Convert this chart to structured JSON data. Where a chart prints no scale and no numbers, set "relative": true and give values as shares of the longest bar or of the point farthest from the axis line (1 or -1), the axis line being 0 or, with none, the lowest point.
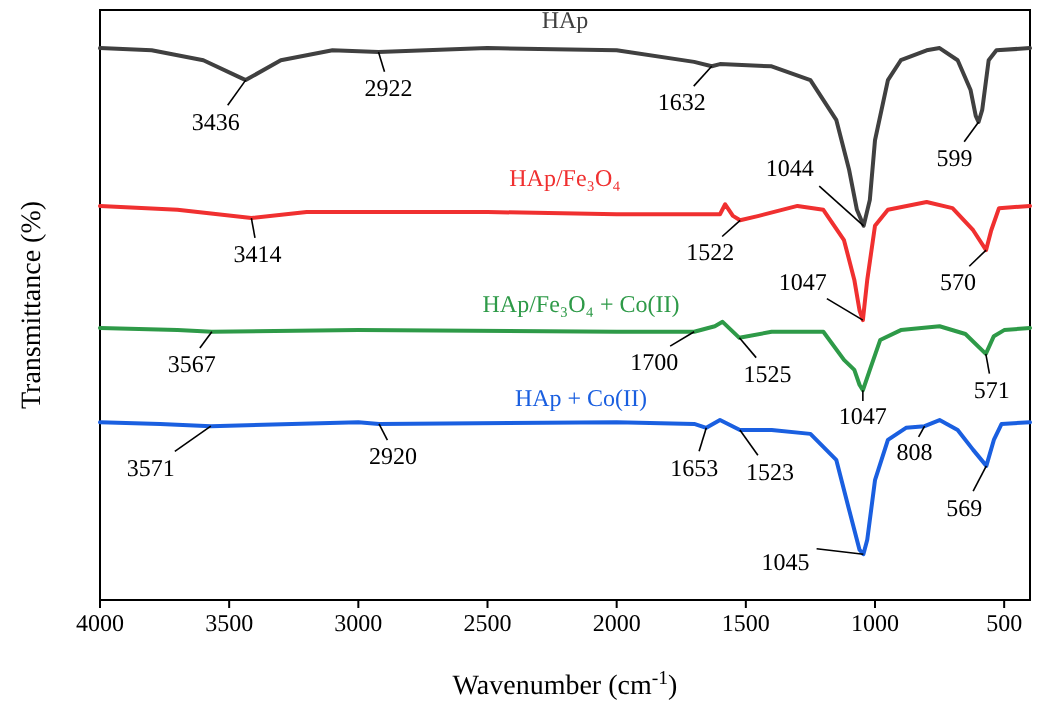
{
  "chart_data": {
    "type": "line",
    "relative": true,
    "xlabel": "Wavenumber (cm$^{-1}$)",
    "ylabel": "Transmittance (%)",
    "xlim": [
      4000,
      400
    ],
    "xticks": [
      4000,
      3500,
      3000,
      2500,
      2000,
      1500,
      1000,
      500
    ],
    "tick_labels": "x",
    "grid": false,
    "marker": "none",
    "line_style": "solid",
    "series": [
      {
        "name": "HAp",
        "color": "#404040",
        "x": [
          4000,
          3800,
          3600,
          3436,
          3300,
          3100,
          2922,
          2500,
          2000,
          1700,
          1632,
          1600,
          1400,
          1250,
          1150,
          1100,
          1070,
          1044,
          1020,
          1000,
          950,
          900,
          800,
          750,
          680,
          630,
          610,
          599,
          585,
          560,
          530,
          400
        ],
        "values": [
          1.0,
          0.996,
          0.978,
          0.942,
          0.978,
          0.996,
          0.993,
          1.0,
          0.996,
          0.975,
          0.967,
          0.971,
          0.967,
          0.942,
          0.87,
          0.779,
          0.707,
          0.678,
          0.725,
          0.833,
          0.942,
          0.978,
          0.996,
          1.0,
          0.978,
          0.924,
          0.877,
          0.866,
          0.888,
          0.978,
          0.996,
          1.0
        ]
      },
      {
        "name": "HAp/Fe₃O₄",
        "color": "#f03030",
        "x": [
          4000,
          3700,
          3414,
          3200,
          2500,
          2000,
          1600,
          1580,
          1550,
          1522,
          1450,
          1300,
          1200,
          1120,
          1080,
          1060,
          1047,
          1030,
          1000,
          950,
          800,
          700,
          620,
          570,
          550,
          520,
          400
        ],
        "values": [
          0.714,
          0.707,
          0.692,
          0.703,
          0.703,
          0.699,
          0.699,
          0.717,
          0.696,
          0.688,
          0.696,
          0.714,
          0.707,
          0.652,
          0.58,
          0.525,
          0.507,
          0.58,
          0.678,
          0.707,
          0.721,
          0.71,
          0.67,
          0.634,
          0.67,
          0.71,
          0.714
        ]
      },
      {
        "name": "HAp/Fe₃O₄ + Co(II)",
        "color": "#2e9a48",
        "x": [
          4000,
          3700,
          3567,
          3000,
          2000,
          1700,
          1620,
          1590,
          1525,
          1400,
          1200,
          1120,
          1080,
          1060,
          1047,
          1020,
          980,
          900,
          750,
          650,
          571,
          540,
          500,
          400
        ],
        "values": [
          0.493,
          0.489,
          0.486,
          0.489,
          0.486,
          0.486,
          0.496,
          0.504,
          0.475,
          0.486,
          0.486,
          0.435,
          0.417,
          0.39,
          0.38,
          0.417,
          0.471,
          0.489,
          0.496,
          0.482,
          0.446,
          0.478,
          0.489,
          0.493
        ]
      },
      {
        "name": "HAp + Co(II)",
        "color": "#1a5fe0",
        "x": [
          4000,
          3767,
          3571,
          3000,
          2920,
          2000,
          1700,
          1653,
          1600,
          1523,
          1400,
          1250,
          1150,
          1100,
          1060,
          1045,
          1030,
          1000,
          950,
          880,
          808,
          750,
          680,
          620,
          569,
          540,
          510,
          400
        ],
        "values": [
          0.322,
          0.319,
          0.315,
          0.322,
          0.319,
          0.322,
          0.319,
          0.312,
          0.326,
          0.308,
          0.308,
          0.301,
          0.254,
          0.163,
          0.091,
          0.083,
          0.109,
          0.217,
          0.29,
          0.312,
          0.315,
          0.326,
          0.308,
          0.272,
          0.243,
          0.29,
          0.319,
          0.322
        ]
      }
    ],
    "annotations": [
      {
        "text": "3436",
        "x": 3436,
        "y": 0.942
      },
      {
        "text": "2922",
        "x": 2922,
        "y": 0.993
      },
      {
        "text": "1632",
        "x": 1632,
        "y": 0.967
      },
      {
        "text": "1044",
        "x": 1044,
        "y": 0.678
      },
      {
        "text": "599",
        "x": 599,
        "y": 0.866
      },
      {
        "text": "3414",
        "x": 3414,
        "y": 0.692
      },
      {
        "text": "1522",
        "x": 1522,
        "y": 0.688
      },
      {
        "text": "1047",
        "x": 1047,
        "y": 0.507
      },
      {
        "text": "570",
        "x": 570,
        "y": 0.634
      },
      {
        "text": "3567",
        "x": 3567,
        "y": 0.486
      },
      {
        "text": "1700",
        "x": 1700,
        "y": 0.486
      },
      {
        "text": "1525",
        "x": 1525,
        "y": 0.475
      },
      {
        "text": "1047",
        "x": 1047,
        "y": 0.38
      },
      {
        "text": "571",
        "x": 571,
        "y": 0.446
      },
      {
        "text": "3571",
        "x": 3571,
        "y": 0.315
      },
      {
        "text": "2920",
        "x": 2920,
        "y": 0.319
      },
      {
        "text": "1653",
        "x": 1653,
        "y": 0.312
      },
      {
        "text": "1523",
        "x": 1523,
        "y": 0.308
      },
      {
        "text": "808",
        "x": 808,
        "y": 0.315
      },
      {
        "text": "569",
        "x": 569,
        "y": 0.243
      },
      {
        "text": "1045",
        "x": 1045,
        "y": 0.083
      }
    ]
  }
}
